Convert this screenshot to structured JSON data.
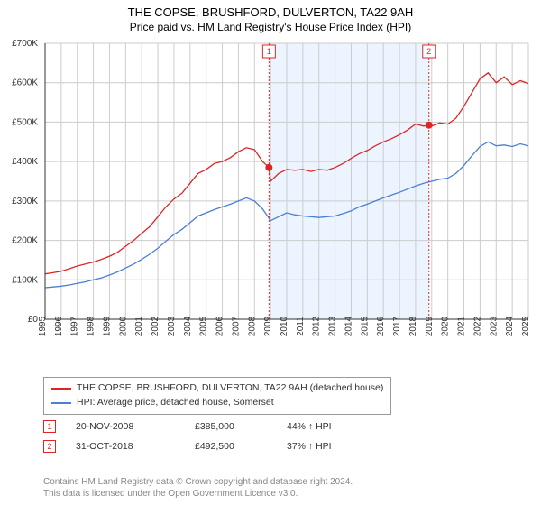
{
  "title": "THE COPSE, BRUSHFORD, DULVERTON, TA22 9AH",
  "subtitle": "Price paid vs. HM Land Registry's House Price Index (HPI)",
  "chart": {
    "type": "line",
    "xlim": [
      1995,
      2025
    ],
    "ylim": [
      0,
      700000
    ],
    "ytick_step": 100000,
    "ytick_labels": [
      "£0",
      "£100K",
      "£200K",
      "£300K",
      "£400K",
      "£500K",
      "£600K",
      "£700K"
    ],
    "xtick_labels": [
      "1995",
      "1996",
      "1997",
      "1998",
      "1999",
      "2000",
      "2001",
      "2002",
      "2003",
      "2004",
      "2005",
      "2006",
      "2007",
      "2008",
      "2009",
      "2010",
      "2011",
      "2012",
      "2013",
      "2014",
      "2015",
      "2016",
      "2017",
      "2018",
      "2019",
      "2020",
      "2021",
      "2022",
      "2023",
      "2024",
      "2025"
    ],
    "grid_color": "#cccccc",
    "background_color": "#ffffff",
    "shade_band": {
      "from_year": 2008.9,
      "to_year": 2018.83,
      "color": "#e3efff"
    },
    "series": [
      {
        "name": "THE COPSE, BRUSHFORD, DULVERTON, TA22 9AH (detached house)",
        "color": "#dc2626",
        "line_width": 1.3,
        "data_x": [
          1995,
          1995.5,
          1996,
          1996.5,
          1997,
          1997.5,
          1998,
          1998.5,
          1999,
          1999.5,
          2000,
          2000.5,
          2001,
          2001.5,
          2002,
          2002.5,
          2003,
          2003.5,
          2004,
          2004.5,
          2005,
          2005.5,
          2006,
          2006.5,
          2007,
          2007.5,
          2008,
          2008.5,
          2008.9,
          2009,
          2009.5,
          2010,
          2010.5,
          2011,
          2011.5,
          2012,
          2012.5,
          2013,
          2013.5,
          2014,
          2014.5,
          2015,
          2015.5,
          2016,
          2016.5,
          2017,
          2017.5,
          2018,
          2018.5,
          2018.83,
          2019,
          2019.5,
          2020,
          2020.5,
          2021,
          2021.5,
          2022,
          2022.5,
          2023,
          2023.5,
          2024,
          2024.5,
          2025
        ],
        "data_y": [
          115000,
          118000,
          122000,
          128000,
          135000,
          140000,
          145000,
          152000,
          160000,
          170000,
          185000,
          200000,
          218000,
          235000,
          260000,
          285000,
          305000,
          320000,
          345000,
          370000,
          380000,
          395000,
          400000,
          410000,
          425000,
          435000,
          430000,
          400000,
          385000,
          350000,
          370000,
          380000,
          378000,
          380000,
          375000,
          380000,
          378000,
          385000,
          395000,
          408000,
          420000,
          428000,
          440000,
          450000,
          458000,
          468000,
          480000,
          495000,
          490000,
          492500,
          490000,
          498000,
          495000,
          510000,
          540000,
          575000,
          610000,
          625000,
          600000,
          615000,
          595000,
          605000,
          598000
        ]
      },
      {
        "name": "HPI: Average price, detached house, Somerset",
        "color": "#4a7fd4",
        "line_width": 1.3,
        "data_x": [
          1995,
          1995.5,
          1996,
          1996.5,
          1997,
          1997.5,
          1998,
          1998.5,
          1999,
          1999.5,
          2000,
          2000.5,
          2001,
          2001.5,
          2002,
          2002.5,
          2003,
          2003.5,
          2004,
          2004.5,
          2005,
          2005.5,
          2006,
          2006.5,
          2007,
          2007.5,
          2008,
          2008.5,
          2009,
          2009.5,
          2010,
          2010.5,
          2011,
          2011.5,
          2012,
          2012.5,
          2013,
          2013.5,
          2014,
          2014.5,
          2015,
          2015.5,
          2016,
          2016.5,
          2017,
          2017.5,
          2018,
          2018.5,
          2019,
          2019.5,
          2020,
          2020.5,
          2021,
          2021.5,
          2022,
          2022.5,
          2023,
          2023.5,
          2024,
          2024.5,
          2025
        ],
        "data_y": [
          80000,
          82000,
          84000,
          87000,
          91000,
          95000,
          100000,
          105000,
          112000,
          120000,
          130000,
          140000,
          152000,
          165000,
          180000,
          198000,
          215000,
          228000,
          245000,
          262000,
          270000,
          278000,
          285000,
          292000,
          300000,
          308000,
          300000,
          280000,
          250000,
          260000,
          270000,
          265000,
          262000,
          260000,
          258000,
          260000,
          262000,
          268000,
          275000,
          285000,
          292000,
          300000,
          308000,
          315000,
          322000,
          330000,
          338000,
          345000,
          350000,
          355000,
          358000,
          370000,
          390000,
          415000,
          438000,
          450000,
          440000,
          442000,
          438000,
          445000,
          440000
        ]
      }
    ],
    "markers": [
      {
        "label": "1",
        "year": 2008.9,
        "y": 385000
      },
      {
        "label": "2",
        "year": 2018.83,
        "y": 492500
      }
    ]
  },
  "legend": {
    "items": [
      {
        "label": "THE COPSE, BRUSHFORD, DULVERTON, TA22 9AH (detached house)",
        "color": "#dc2626"
      },
      {
        "label": "HPI: Average price, detached house, Somerset",
        "color": "#4a7fd4"
      }
    ]
  },
  "marker_rows": [
    {
      "num": "1",
      "date": "20-NOV-2008",
      "price": "£385,000",
      "hpi": "44% ↑ HPI"
    },
    {
      "num": "2",
      "date": "31-OCT-2018",
      "price": "£492,500",
      "hpi": "37% ↑ HPI"
    }
  ],
  "footer_line1": "Contains HM Land Registry data © Crown copyright and database right 2024.",
  "footer_line2": "This data is licensed under the Open Government Licence v3.0."
}
